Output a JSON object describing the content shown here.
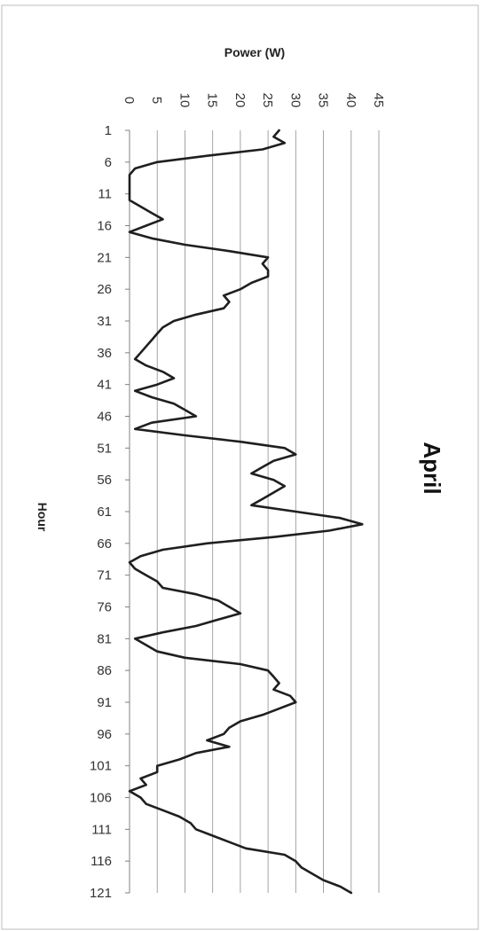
{
  "chart_data": {
    "type": "line",
    "title": "April",
    "xlabel": "Hour",
    "ylabel": "Power (W)",
    "xlim": [
      1,
      121
    ],
    "ylim": [
      0,
      45
    ],
    "grid": true,
    "x_tick_labels": [
      "1",
      "6",
      "11",
      "16",
      "21",
      "26",
      "31",
      "36",
      "41",
      "46",
      "51",
      "56",
      "61",
      "66",
      "71",
      "76",
      "81",
      "86",
      "91",
      "96",
      "101",
      "106",
      "111",
      "116",
      "121"
    ],
    "y_tick_labels": [
      "0",
      "5",
      "10",
      "15",
      "20",
      "25",
      "30",
      "35",
      "40",
      "45"
    ],
    "series": [
      {
        "color": "#1f1f1f",
        "x": [
          1,
          2,
          3,
          4,
          5,
          6,
          7,
          8,
          9,
          10,
          11,
          12,
          13,
          14,
          15,
          16,
          17,
          18,
          19,
          20,
          21,
          22,
          23,
          24,
          25,
          26,
          27,
          28,
          29,
          30,
          31,
          32,
          33,
          34,
          35,
          36,
          37,
          38,
          39,
          40,
          41,
          42,
          43,
          44,
          45,
          46,
          47,
          48,
          49,
          50,
          51,
          52,
          53,
          54,
          55,
          56,
          57,
          58,
          59,
          60,
          61,
          62,
          63,
          64,
          65,
          66,
          67,
          68,
          69,
          70,
          71,
          72,
          73,
          74,
          75,
          76,
          77,
          78,
          79,
          80,
          81,
          82,
          83,
          84,
          85,
          86,
          87,
          88,
          89,
          90,
          91,
          92,
          93,
          94,
          95,
          96,
          97,
          98,
          99,
          100,
          101,
          102,
          103,
          104,
          105,
          106,
          107,
          108,
          109,
          110,
          111,
          112,
          113,
          114,
          115,
          116,
          117,
          118,
          119,
          120,
          121
        ],
        "values": [
          27,
          26,
          28,
          24,
          14,
          5,
          1,
          0,
          0,
          0,
          0,
          0,
          2,
          4,
          6,
          3,
          0,
          4,
          10,
          18,
          25,
          24,
          25,
          25,
          22,
          20,
          17,
          18,
          17,
          12,
          8,
          6,
          5,
          4,
          3,
          2,
          1,
          3,
          6,
          8,
          5,
          1,
          4,
          8,
          10,
          12,
          4,
          1,
          10,
          20,
          28,
          30,
          26,
          24,
          22,
          26,
          28,
          26,
          24,
          22,
          30,
          38,
          42,
          36,
          26,
          14,
          6,
          2,
          0,
          1,
          3,
          5,
          6,
          12,
          16,
          18,
          20,
          16,
          12,
          6,
          1,
          3,
          5,
          10,
          20,
          25,
          26,
          27,
          26,
          29,
          30,
          27,
          24,
          20,
          18,
          17,
          14,
          18,
          12,
          9,
          5,
          5,
          2,
          3,
          0,
          2,
          3,
          6,
          9,
          11,
          12,
          15,
          18,
          21,
          28,
          30,
          31,
          33,
          35,
          38,
          40
        ]
      }
    ]
  }
}
